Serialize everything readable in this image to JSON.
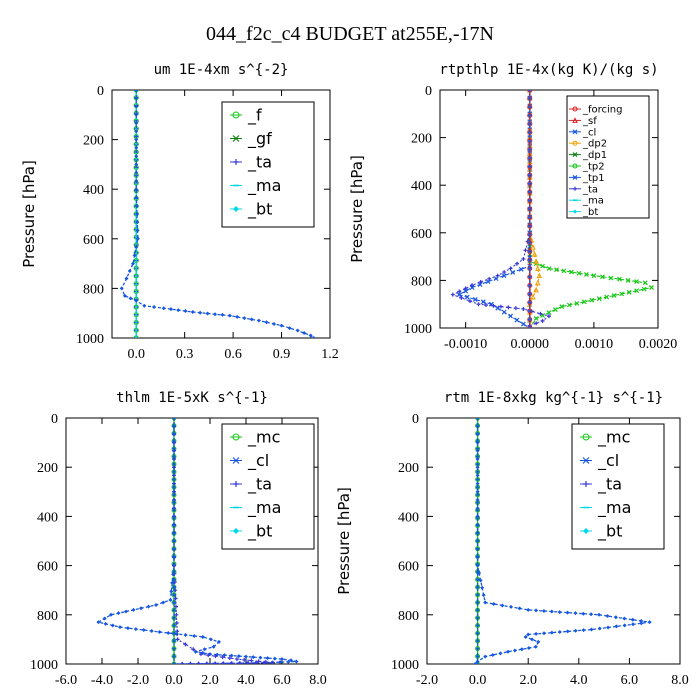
{
  "title": "044_f2c_c4  BUDGET at255E,-17N",
  "colors": {
    "bt": "#00d8e8",
    "green": "#18c818",
    "blue_dash": "#1858e0",
    "purple": "#3838d8",
    "red": "#e02020",
    "orange": "#f0a000",
    "dark_green": "#108010"
  },
  "chart_data": [
    {
      "type": "line",
      "subtitle": "um   1E-4xm s^{-2}",
      "ylabel": "Pressure [hPa]",
      "ylim": [
        1000,
        0
      ],
      "xlim": [
        -0.15,
        1.2
      ],
      "yticks": [
        0,
        200,
        400,
        600,
        800,
        1000
      ],
      "xticks": [
        0,
        0.3,
        0.6,
        0.9,
        1.2
      ],
      "xtick_labels": [
        "0.0",
        "0.3",
        "0.6",
        "0.9",
        "1.2"
      ],
      "legend": [
        "_f",
        "_gf",
        "_ta",
        "_ma",
        "_bt"
      ],
      "series": [
        {
          "name": "_f",
          "x": [
            0.0,
            0.0,
            0.0,
            0.0,
            0.0
          ],
          "y": [
            0,
            250,
            500,
            750,
            1000
          ]
        },
        {
          "name": "_gf",
          "x": [
            0.0,
            0.0,
            0.0,
            0.0,
            0.0
          ],
          "y": [
            0,
            250,
            500,
            750,
            1000
          ]
        },
        {
          "name": "_ta",
          "x": [
            0.0,
            0.0,
            0.0,
            0.0,
            0.0
          ],
          "y": [
            0,
            250,
            500,
            750,
            1000
          ]
        },
        {
          "name": "_ma",
          "x": [
            0.0,
            0.0,
            0.0,
            0.0,
            0.0
          ],
          "y": [
            0,
            250,
            500,
            750,
            1000
          ]
        },
        {
          "name": "_bt",
          "x": [
            0.0,
            0.0,
            0.0,
            0.01,
            -0.02,
            -0.06,
            -0.09,
            -0.07,
            0.0,
            0.05,
            0.17,
            0.35,
            0.58,
            0.76,
            0.9,
            1.0,
            1.08,
            1.1
          ],
          "y": [
            0,
            200,
            400,
            600,
            700,
            760,
            800,
            830,
            850,
            870,
            880,
            895,
            910,
            930,
            950,
            970,
            990,
            1000
          ]
        }
      ]
    },
    {
      "type": "line",
      "subtitle": "rtpthlp   1E-4x(kg K)/(kg s)",
      "ylabel": "Pressure [hPa]",
      "ylim": [
        1000,
        0
      ],
      "xlim": [
        -0.0014,
        0.002
      ],
      "yticks": [
        0,
        200,
        400,
        600,
        800,
        1000
      ],
      "xticks": [
        -0.001,
        0.0,
        0.001,
        0.002
      ],
      "xtick_labels": [
        "-0.0010",
        "0.0000",
        "0.0010",
        "0.0020"
      ],
      "legend": [
        "_forcing",
        "_sf",
        "_cl",
        "_dp2",
        "_dp1",
        "_tp2",
        "_tp1",
        "_ta",
        "_ma",
        "_bt"
      ],
      "series": [
        {
          "name": "_tp2",
          "x": [
            0.0,
            0.0,
            0.0,
            0.0,
            0.0003,
            0.001,
            0.0018,
            0.0019,
            0.0012,
            0.0005,
            0.0001,
            0.0
          ],
          "y": [
            0,
            300,
            600,
            720,
            750,
            780,
            810,
            830,
            870,
            910,
            960,
            1000
          ]
        },
        {
          "name": "_tp1",
          "x": [
            0.0,
            0.0,
            0.0,
            0.0,
            -0.0004,
            -0.0009,
            -0.0011,
            -0.0006,
            -0.0003,
            0.0
          ],
          "y": [
            0,
            300,
            600,
            740,
            780,
            830,
            860,
            900,
            950,
            1000
          ]
        },
        {
          "name": "_ta",
          "x": [
            0.0,
            0.0,
            0.0,
            -0.0001,
            -0.0003,
            -0.0005,
            -0.0009,
            -0.0012,
            -0.0008,
            -0.0001,
            0.0003,
            0.0002,
            0.0,
            0.0
          ],
          "y": [
            0,
            300,
            600,
            710,
            750,
            780,
            820,
            860,
            900,
            920,
            950,
            970,
            990,
            1000
          ]
        },
        {
          "name": "_dp1",
          "x": [
            0.0,
            0.0,
            0.0,
            0.0001,
            0.00015,
            0.0001,
            0.0,
            0.0
          ],
          "y": [
            0,
            300,
            600,
            720,
            780,
            840,
            900,
            1000
          ]
        },
        {
          "name": "_forcing",
          "x": [
            0.0,
            0.0,
            0.0,
            0.0,
            0.0
          ],
          "y": [
            0,
            250,
            500,
            750,
            1000
          ]
        },
        {
          "name": "_bt",
          "x": [
            0.0,
            0.0,
            0.0,
            0.0,
            0.0
          ],
          "y": [
            0,
            250,
            500,
            750,
            1000
          ]
        }
      ]
    },
    {
      "type": "line",
      "subtitle": "thlm   1E-5xK s^{-1}",
      "ylabel": "Pressure [hPa]",
      "ylim": [
        1000,
        0
      ],
      "xlim": [
        -6.0,
        8.0
      ],
      "yticks": [
        0,
        200,
        400,
        600,
        800,
        1000
      ],
      "xticks": [
        -6,
        -4,
        -2,
        0,
        2,
        4,
        6,
        8
      ],
      "xtick_labels": [
        "-6.0",
        "-4.0",
        "-2.0",
        "0.0",
        "2.0",
        "4.0",
        "6.0",
        "8.0"
      ],
      "legend": [
        "_mc",
        "_cl",
        "_ta",
        "_ma",
        "_bt"
      ],
      "series": [
        {
          "name": "_mc",
          "x": [
            0.0,
            0.0,
            0.0,
            0.0,
            0.0
          ],
          "y": [
            0,
            250,
            500,
            750,
            1000
          ]
        },
        {
          "name": "_cl",
          "x": [
            0.0,
            0.0,
            0.0,
            -0.2,
            -1.0,
            -3.5,
            -4.2,
            -3.0,
            -0.8,
            1.6,
            2.5,
            2.2,
            1.2,
            2.0,
            4.0,
            6.0,
            6.5,
            6.8,
            5.0,
            0.0
          ],
          "y": [
            0,
            300,
            600,
            740,
            760,
            800,
            830,
            850,
            870,
            890,
            910,
            930,
            950,
            960,
            970,
            980,
            985,
            990,
            995,
            1000
          ]
        },
        {
          "name": "_ta",
          "x": [
            0.0,
            0.0,
            0.0,
            0.2,
            1.5,
            3.5,
            5.5,
            0.0
          ],
          "y": [
            0,
            300,
            600,
            900,
            960,
            980,
            995,
            1000
          ]
        },
        {
          "name": "_bt",
          "x": [
            0.0,
            0.0,
            0.0,
            0.0,
            0.0
          ],
          "y": [
            0,
            250,
            500,
            750,
            1000
          ]
        }
      ]
    },
    {
      "type": "line",
      "subtitle": "rtm   1E-8xkg kg^{-1} s^{-1}",
      "ylabel": "Pressure [hPa]",
      "ylim": [
        1000,
        0
      ],
      "xlim": [
        -2.0,
        8.0
      ],
      "yticks": [
        0,
        200,
        400,
        600,
        800,
        1000
      ],
      "xticks": [
        -2,
        0,
        2,
        4,
        6,
        8
      ],
      "xtick_labels": [
        "-2.0",
        "0.0",
        "2.0",
        "4.0",
        "6.0",
        "8.0"
      ],
      "legend": [
        "_mc",
        "_cl",
        "_ta",
        "_ma",
        "_bt"
      ],
      "series": [
        {
          "name": "_mc",
          "x": [
            0.0,
            0.0,
            0.0,
            0.0,
            0.0
          ],
          "y": [
            0,
            250,
            500,
            750,
            1000
          ]
        },
        {
          "name": "_cl",
          "x": [
            0.0,
            0.0,
            0.0,
            0.3,
            2.0,
            4.8,
            6.8,
            4.5,
            2.0,
            1.9,
            2.4,
            2.3,
            1.2,
            0.3,
            0.0,
            -0.1
          ],
          "y": [
            0,
            300,
            600,
            750,
            780,
            800,
            830,
            860,
            880,
            890,
            910,
            930,
            950,
            970,
            990,
            1000
          ]
        },
        {
          "name": "_bt",
          "x": [
            0.0,
            0.0,
            0.0,
            0.0,
            0.0
          ],
          "y": [
            0,
            250,
            500,
            750,
            1000
          ]
        }
      ]
    }
  ]
}
